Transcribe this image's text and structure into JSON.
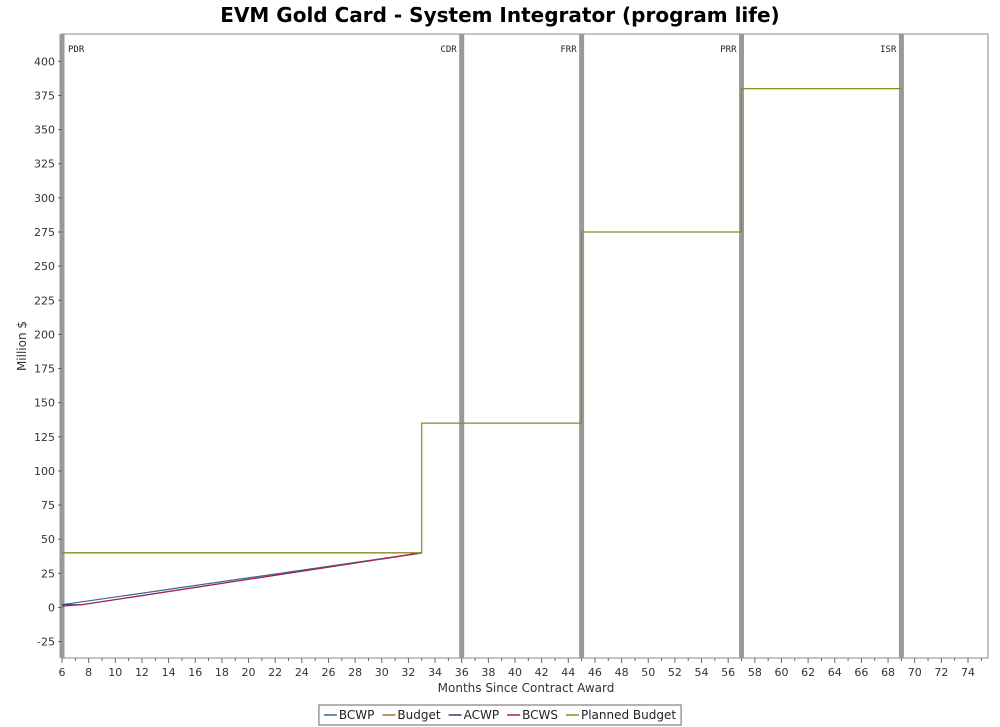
{
  "chart_data": {
    "type": "line",
    "title": "EVM Gold Card - System Integrator (program life)",
    "xlabel": "Months Since Contract Award",
    "ylabel": "Million $",
    "xlim": [
      6,
      75.5
    ],
    "ylim": [
      -37,
      420
    ],
    "x_ticks": [
      6,
      8,
      10,
      12,
      14,
      16,
      18,
      20,
      22,
      24,
      26,
      28,
      30,
      32,
      34,
      36,
      38,
      40,
      42,
      44,
      46,
      48,
      50,
      52,
      54,
      56,
      58,
      60,
      62,
      64,
      66,
      68,
      70,
      72,
      74
    ],
    "y_ticks": [
      -25,
      0,
      25,
      50,
      75,
      100,
      125,
      150,
      175,
      200,
      225,
      250,
      275,
      300,
      325,
      350,
      375,
      400
    ],
    "grid": false,
    "legend_position": "bottom-center",
    "milestones": [
      {
        "label": "PDR",
        "x": 6
      },
      {
        "label": "CDR",
        "x": 36
      },
      {
        "label": "FRR",
        "x": 45
      },
      {
        "label": "PRR",
        "x": 57
      },
      {
        "label": "ISR",
        "x": 69
      }
    ],
    "milestone_color": "#999999",
    "series": [
      {
        "name": "BCWP",
        "color": "#2f6b8f",
        "x": [
          6,
          33
        ],
        "y": [
          2,
          40
        ]
      },
      {
        "name": "Budget",
        "color": "#a07830",
        "x": [
          6,
          33
        ],
        "y": [
          40,
          40
        ]
      },
      {
        "name": "ACWP",
        "color": "#2a3f7a",
        "x": [
          6,
          7.5,
          33
        ],
        "y": [
          2,
          2,
          40
        ]
      },
      {
        "name": "BCWS",
        "color": "#b0204a",
        "x": [
          6,
          7.5,
          33
        ],
        "y": [
          1,
          2,
          40
        ]
      },
      {
        "name": "Planned Budget",
        "color": "#8a8a20",
        "x": [
          6,
          33,
          33,
          45,
          45,
          57,
          57,
          69
        ],
        "y": [
          40,
          40,
          135,
          135,
          275,
          275,
          380,
          380
        ]
      }
    ]
  }
}
